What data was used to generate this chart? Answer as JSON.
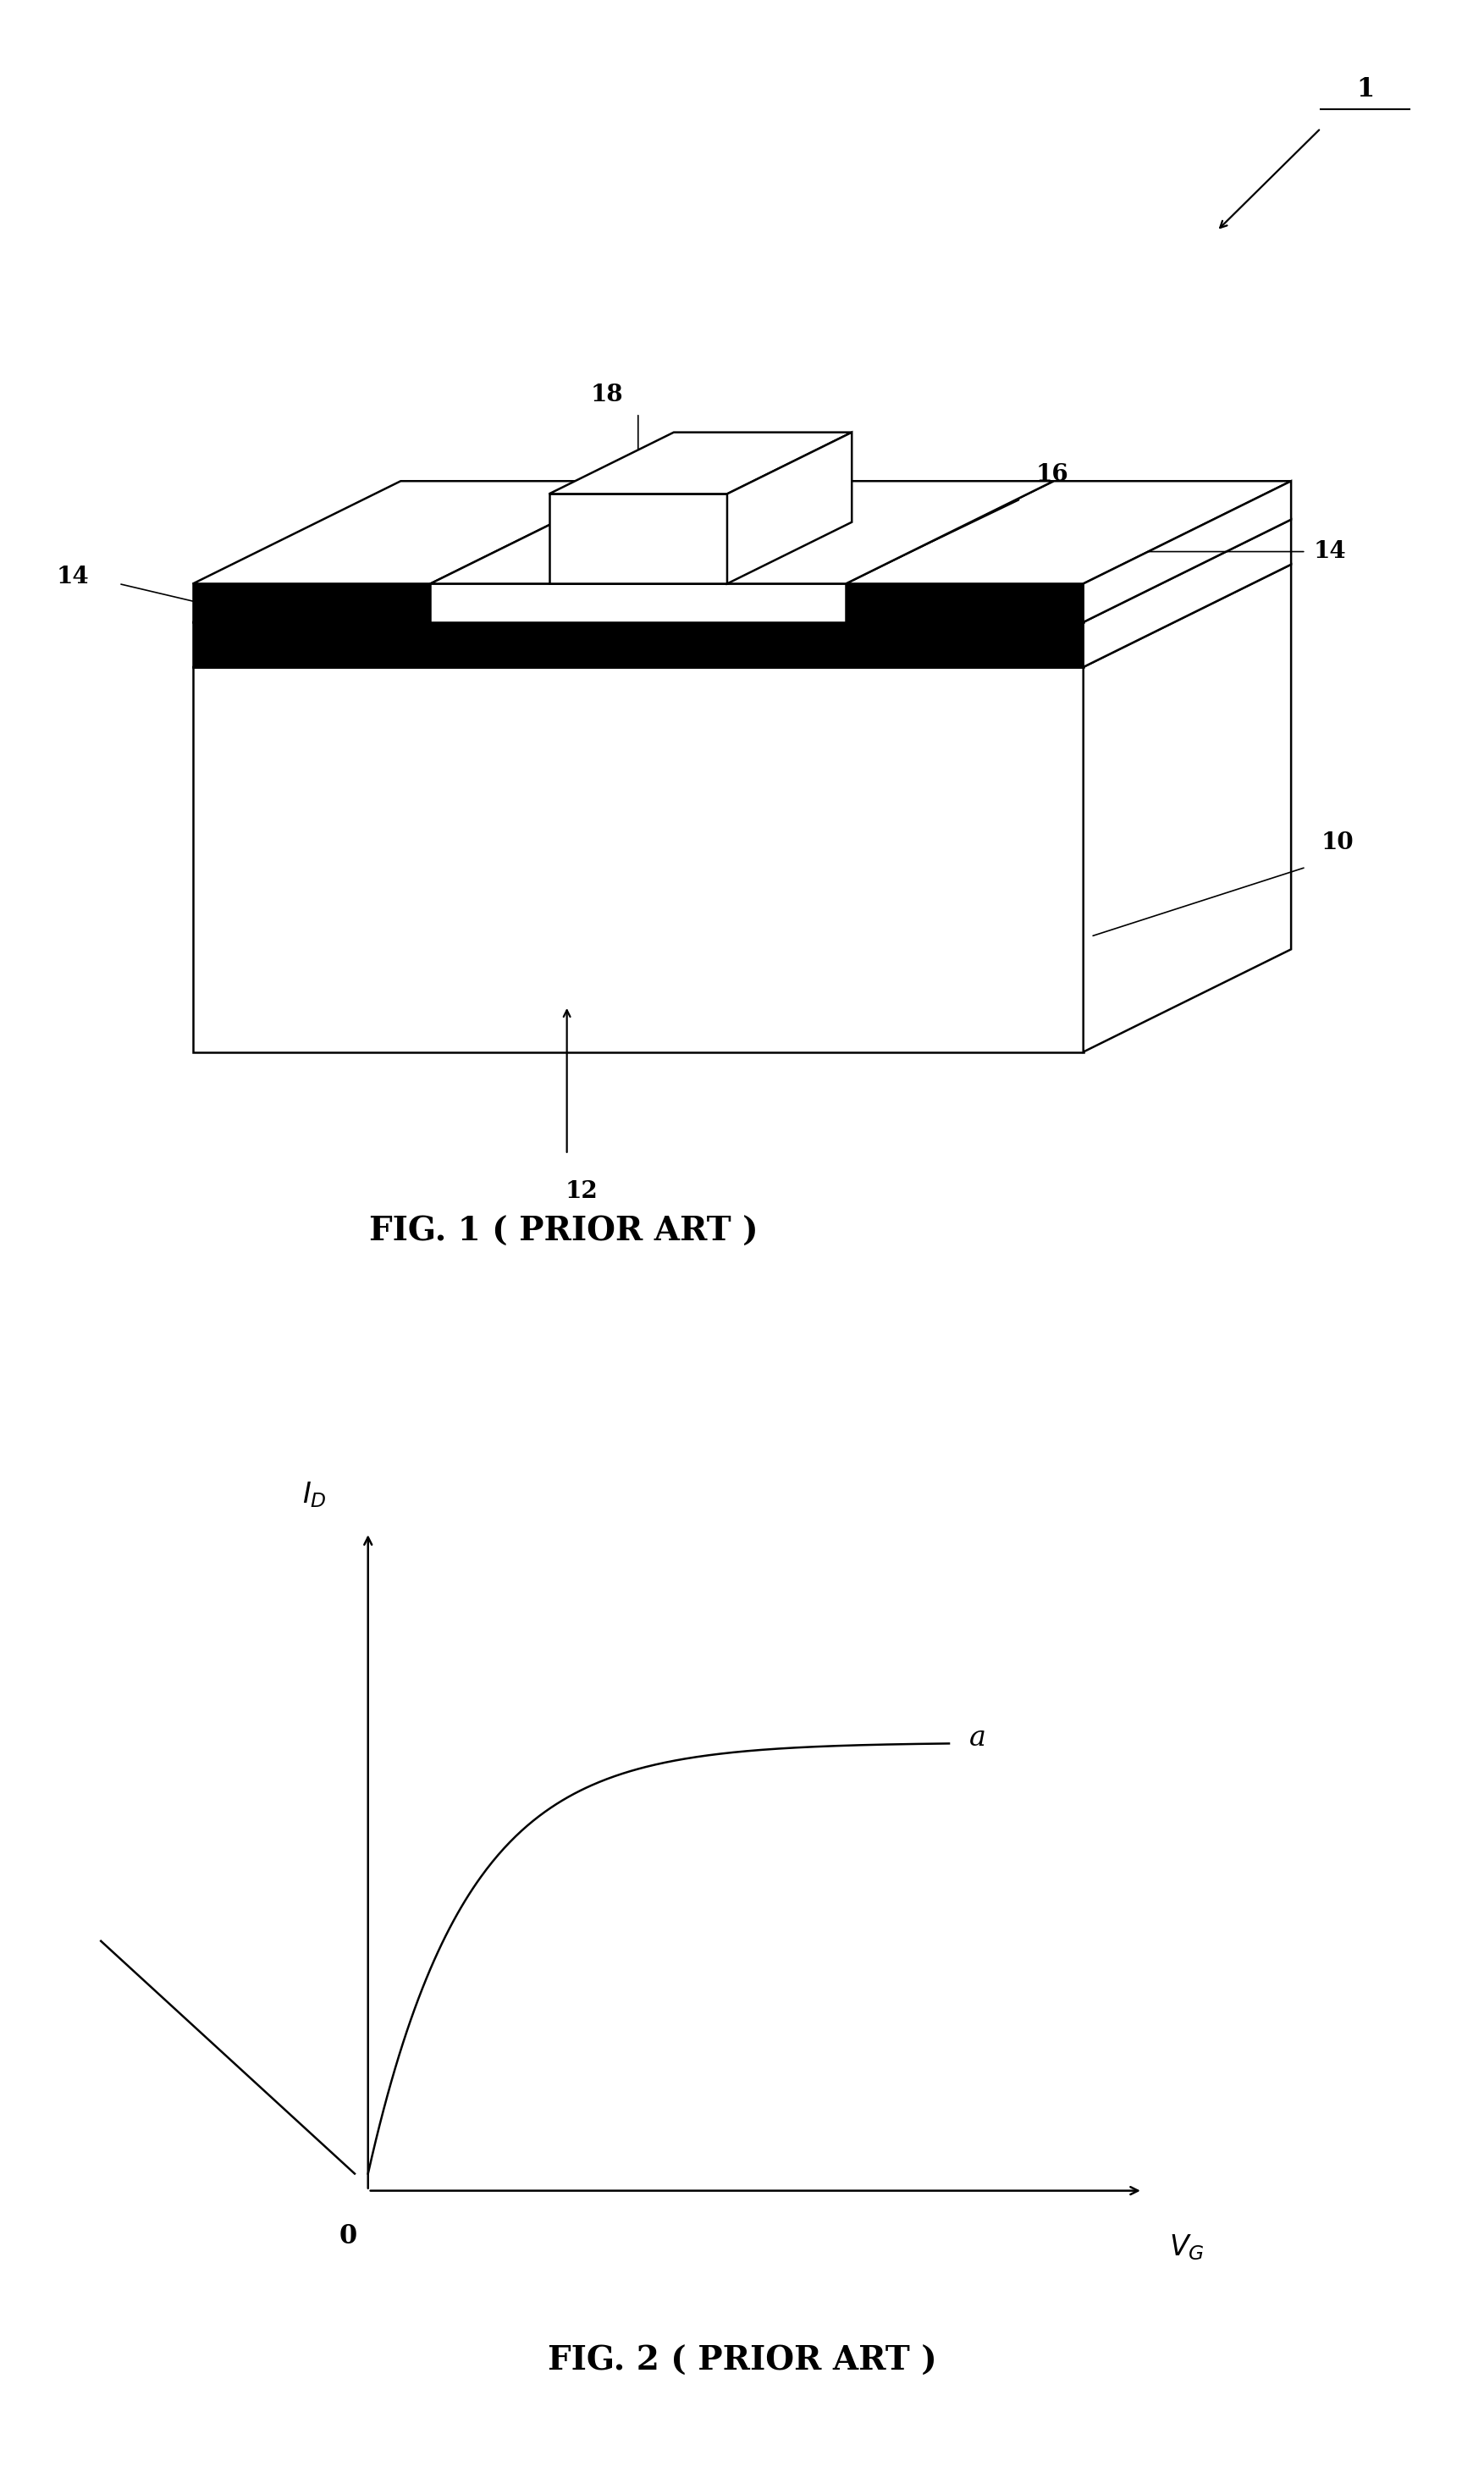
{
  "bg_color": "#ffffff",
  "fig1": {
    "title": "FIG. 1 ( PRIOR ART )",
    "labels": {
      "1": [
        0.82,
        0.88
      ],
      "10": "right_substrate",
      "12": "below_arrow",
      "14_left": "left_sd",
      "14_right": "right_sd",
      "16": "gate_dielectric",
      "18": "gate_contact"
    }
  },
  "fig2": {
    "title": "FIG. 2 ( PRIOR ART )"
  },
  "lw": 1.8,
  "fs_label": 20,
  "fs_caption": 28
}
